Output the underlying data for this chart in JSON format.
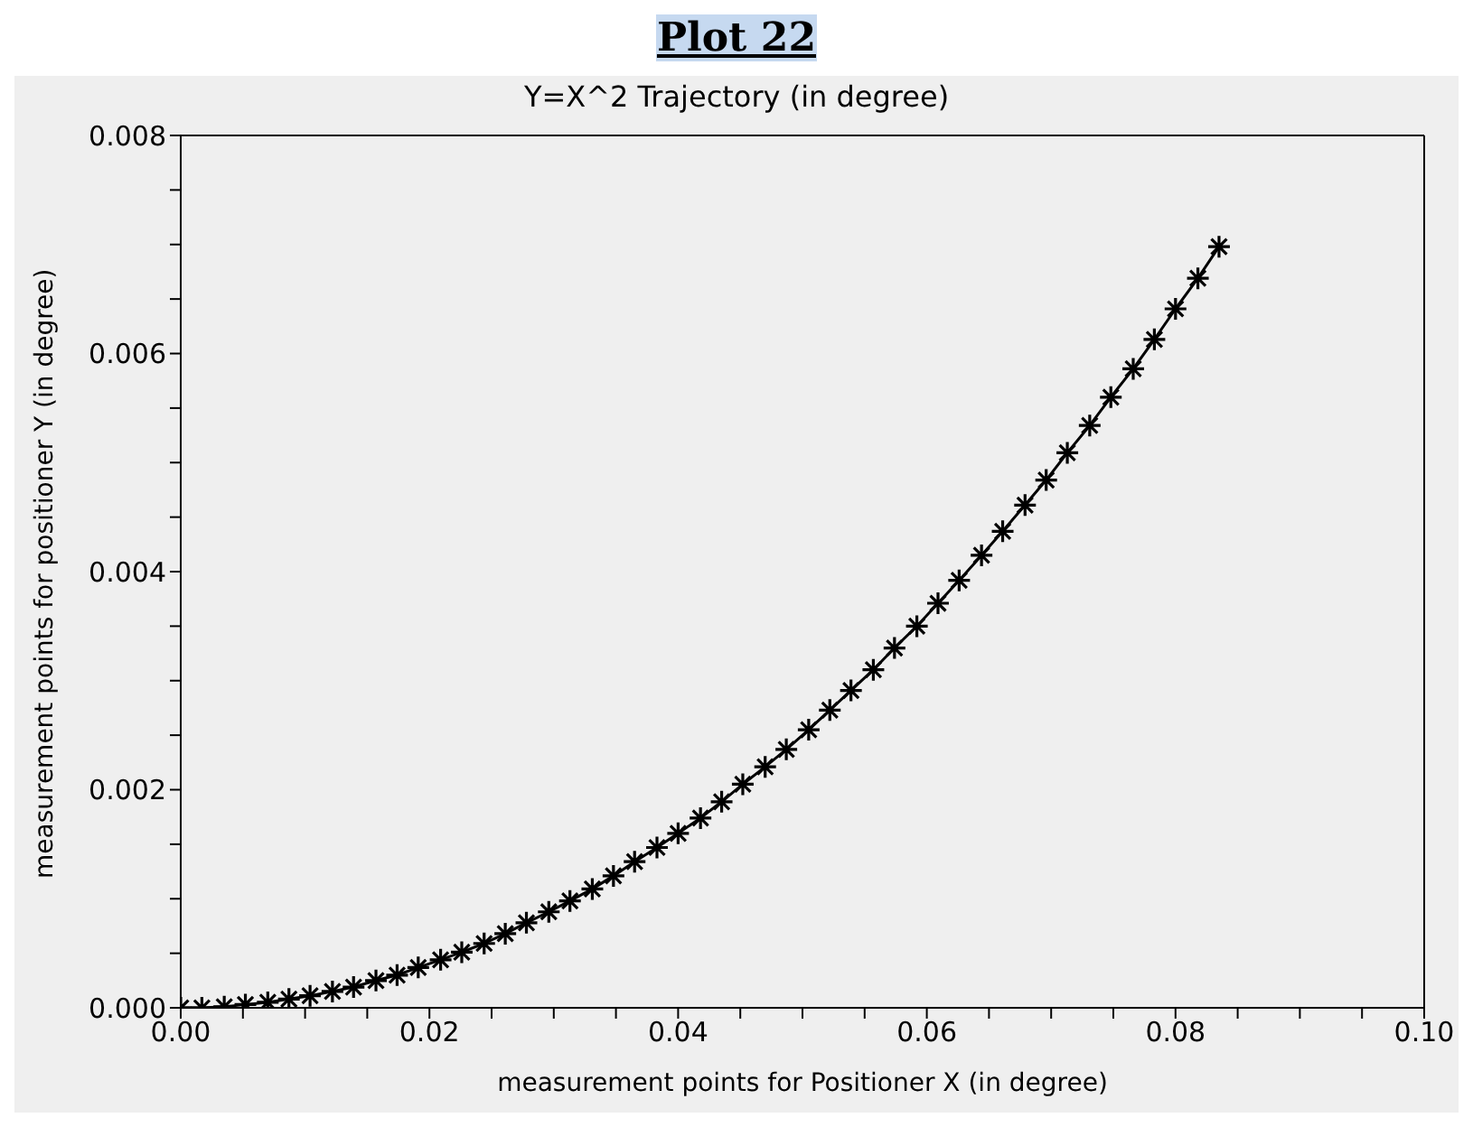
{
  "chart_data": {
    "type": "line",
    "title": "Plot 22",
    "subtitle": "Y=X^2 Trajectory (in degree)",
    "xlabel": "measurement points for Positioner X (in degree)",
    "ylabel": "measurement points for positioner Y (in degree)",
    "x": [
      0,
      0.0017,
      0.0035,
      0.0052,
      0.007,
      0.0087,
      0.0104,
      0.0122,
      0.0139,
      0.0157,
      0.0174,
      0.0191,
      0.0209,
      0.0226,
      0.0244,
      0.0261,
      0.0278,
      0.0296,
      0.0313,
      0.0331,
      0.0348,
      0.0365,
      0.0383,
      0.04,
      0.0418,
      0.0435,
      0.0452,
      0.047,
      0.0487,
      0.0505,
      0.0522,
      0.0539,
      0.0557,
      0.0574,
      0.0592,
      0.0609,
      0.0626,
      0.0644,
      0.0661,
      0.0679,
      0.0696,
      0.0713,
      0.0731,
      0.0748,
      0.0766,
      0.0783,
      0.08,
      0.0818,
      0.0835
    ],
    "series": [
      {
        "color": "#000000",
        "values": [
          0,
          0,
          1e-05,
          3e-05,
          5e-05,
          8e-05,
          0.00011,
          0.00015,
          0.00019,
          0.00025,
          0.0003,
          0.00037,
          0.00044,
          0.00051,
          0.00059,
          0.00068,
          0.00078,
          0.00088,
          0.00098,
          0.00109,
          0.00121,
          0.00134,
          0.00147,
          0.0016,
          0.00174,
          0.00189,
          0.00205,
          0.00221,
          0.00237,
          0.00255,
          0.00273,
          0.00291,
          0.0031,
          0.0033,
          0.0035,
          0.00371,
          0.00392,
          0.00415,
          0.00437,
          0.00461,
          0.00484,
          0.00509,
          0.00534,
          0.0056,
          0.00586,
          0.00613,
          0.00641,
          0.00669,
          0.00698
        ]
      }
    ],
    "xlim": [
      0,
      0.1
    ],
    "xticks": [
      {
        "value": 0,
        "label": "0.00"
      },
      {
        "value": 0.005,
        "label": null
      },
      {
        "value": 0.01,
        "label": null
      },
      {
        "value": 0.015,
        "label": null
      },
      {
        "value": 0.02,
        "label": "0.02"
      },
      {
        "value": 0.025,
        "label": null
      },
      {
        "value": 0.03,
        "label": null
      },
      {
        "value": 0.035,
        "label": null
      },
      {
        "value": 0.04,
        "label": "0.04"
      },
      {
        "value": 0.045,
        "label": null
      },
      {
        "value": 0.05,
        "label": null
      },
      {
        "value": 0.055,
        "label": null
      },
      {
        "value": 0.06,
        "label": "0.06"
      },
      {
        "value": 0.065,
        "label": null
      },
      {
        "value": 0.07,
        "label": null
      },
      {
        "value": 0.075,
        "label": null
      },
      {
        "value": 0.08,
        "label": "0.08"
      },
      {
        "value": 0.085,
        "label": null
      },
      {
        "value": 0.09,
        "label": null
      },
      {
        "value": 0.095,
        "label": null
      },
      {
        "value": 0.1,
        "label": "0.10"
      }
    ],
    "ylim": [
      0,
      0.008
    ],
    "yticks": [
      {
        "value": 0,
        "label": "0.000"
      },
      {
        "value": 0.0005,
        "label": null
      },
      {
        "value": 0.001,
        "label": null
      },
      {
        "value": 0.0015,
        "label": null
      },
      {
        "value": 0.002,
        "label": "0.002"
      },
      {
        "value": 0.0025,
        "label": null
      },
      {
        "value": 0.003,
        "label": null
      },
      {
        "value": 0.0035,
        "label": null
      },
      {
        "value": 0.004,
        "label": "0.004"
      },
      {
        "value": 0.0045,
        "label": null
      },
      {
        "value": 0.005,
        "label": null
      },
      {
        "value": 0.0055,
        "label": null
      },
      {
        "value": 0.006,
        "label": "0.006"
      },
      {
        "value": 0.0065,
        "label": null
      },
      {
        "value": 0.007,
        "label": null
      },
      {
        "value": 0.0075,
        "label": null
      },
      {
        "value": 0.008,
        "label": "0.008"
      }
    ],
    "grid": false,
    "legend": false,
    "marker": "cross",
    "line_style": "solid"
  }
}
